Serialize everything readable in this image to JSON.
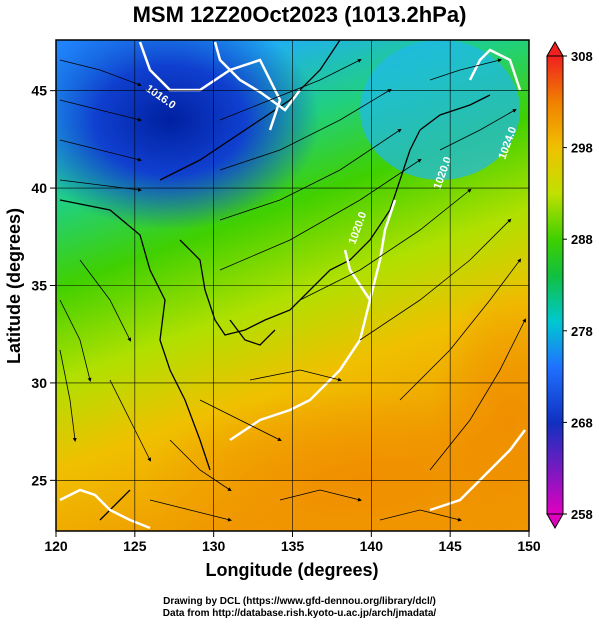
{
  "title": "MSM 12Z20Oct2023 (1013.2hPa)",
  "axes": {
    "xlabel": "Longitude (degrees)",
    "ylabel": "Latitude  (degrees)",
    "xticks": [
      "120",
      "125",
      "130",
      "135",
      "140",
      "145",
      "150"
    ],
    "yticks": [
      "25",
      "30",
      "35",
      "40",
      "45"
    ],
    "xrange": [
      120,
      150
    ],
    "yrange": [
      22.4,
      47.6
    ]
  },
  "colorbar": {
    "ticks": [
      "258",
      "268",
      "278",
      "288",
      "298",
      "308"
    ],
    "range": [
      258,
      308
    ]
  },
  "contour_labels": [
    "1016.0",
    "1020.0",
    "1020.0",
    "1024.0"
  ],
  "footer": {
    "line1": "Drawing by DCL (https://www.gfd-dennou.org/library/dcl/)",
    "line2": "Data from http://database.rish.kyoto-u.ac.jp/arch/jmadata/"
  },
  "colors": {
    "cold": "#1030c0",
    "warm": "#f0a000",
    "land_outline": "#000000",
    "isobar": "#ffffff"
  }
}
